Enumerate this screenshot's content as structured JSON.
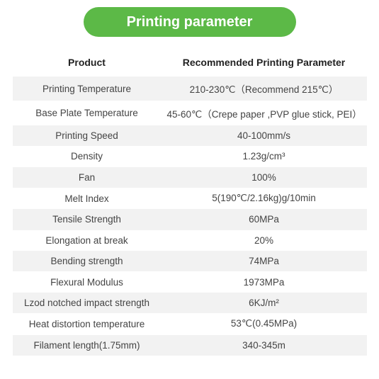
{
  "header": {
    "title": "Printing parameter",
    "pill_bg": "#5cb947",
    "pill_text_color": "#ffffff",
    "pill_width": 300,
    "pill_height": 42,
    "pill_fontsize": 20
  },
  "table": {
    "type": "table",
    "background_color": "#ffffff",
    "row_alt_color": "#f2f2f2",
    "text_color": "#444444",
    "header_text_color": "#222222",
    "columns": [
      {
        "label": "Product",
        "key": "label",
        "width_pct": 42
      },
      {
        "label": "Recommended Printing Parameter",
        "key": "value",
        "width_pct": 58
      }
    ],
    "rows": [
      {
        "label": "Printing Temperature",
        "value": "210-230℃（Recommend 215℃）"
      },
      {
        "label": "Base Plate Temperature",
        "value": "45-60℃（Crepe paper ,PVP glue stick, PEI）"
      },
      {
        "label": "Printing Speed",
        "value": "40-100mm/s"
      },
      {
        "label": "Density",
        "value": "1.23g/cm³"
      },
      {
        "label": "Fan",
        "value": "100%"
      },
      {
        "label": "Melt Index",
        "value": "5(190℃/2.16kg)g/10min"
      },
      {
        "label": "Tensile Strength",
        "value": "60MPa"
      },
      {
        "label": "Elongation at break",
        "value": "20%"
      },
      {
        "label": "Bending strength",
        "value": "74MPa"
      },
      {
        "label": "Flexural Modulus",
        "value": "1973MPa"
      },
      {
        "label": "Lzod notched impact strength",
        "value": "6KJ/m²"
      },
      {
        "label": "Heat distortion temperature",
        "value": "53℃(0.45MPa)"
      },
      {
        "label": "Filament length(1.75mm)",
        "value": "340-345m"
      }
    ]
  }
}
